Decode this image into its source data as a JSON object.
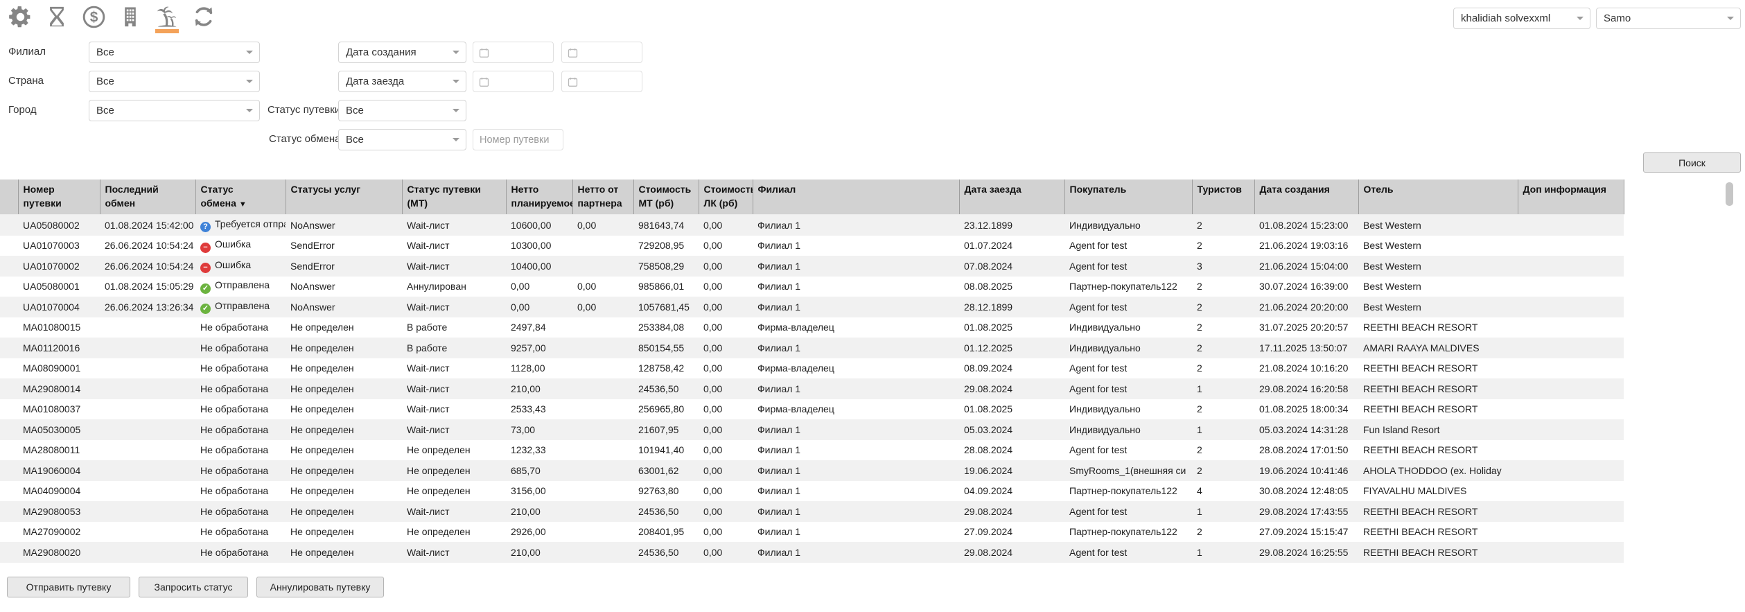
{
  "accent_color": "#F4A259",
  "status_colors": {
    "question": "#3E82D8",
    "error": "#DF3B3B",
    "sent": "#6CB33F"
  },
  "toolbar": {
    "icons": [
      {
        "name": "settings"
      },
      {
        "name": "hourglass"
      },
      {
        "name": "finance"
      },
      {
        "name": "hotels"
      },
      {
        "name": "tours",
        "active": true
      },
      {
        "name": "refresh"
      }
    ]
  },
  "session": {
    "account": "khalidiah solvexxml",
    "provider": "Samo"
  },
  "filters": {
    "branch": {
      "label": "Филиал",
      "value": "Все"
    },
    "country": {
      "label": "Страна",
      "value": "Все"
    },
    "city": {
      "label": "Город",
      "value": "Все"
    },
    "date_created": {
      "value": "Дата создания"
    },
    "date_arrival": {
      "value": "Дата заезда"
    },
    "voucher_status": {
      "label": "Статус путевки",
      "value": "Все"
    },
    "exchange_status": {
      "label": "Статус обмена",
      "value": "Все"
    },
    "voucher_number": {
      "placeholder": "Номер путевки"
    },
    "search": "Поиск"
  },
  "table": {
    "headers": {
      "selector": "",
      "voucher": "Номер путевки",
      "last_exchange": "Последний обмен",
      "exchange_status": "Статус обмена",
      "sort_indicator": "▼",
      "service_statuses": "Статусы услуг",
      "mt_status": "Статус путевки (МТ)",
      "netto_planned": "Нетто планируемое",
      "netto_partner": "Нетто от партнера",
      "cost_mt": "Стоимость МТ (рб)",
      "cost_lk": "Стоимость ЛК (рб)",
      "branch": "Филиал",
      "arrival": "Дата заезда",
      "buyer": "Покупатель",
      "tourists": "Туристов",
      "created": "Дата создания",
      "hotel": "Отель",
      "extra": "Доп информация"
    },
    "rows": [
      {
        "voucher": "UA05080002",
        "last_exchange": "01.08.2024 15:42:00",
        "status_icon": "question",
        "status": "Требуется отправка",
        "service_statuses": "NoAnswer",
        "mt_status": "Wait-лист",
        "netto_planned": "10600,00",
        "netto_partner": "0,00",
        "cost_mt": "981643,74",
        "cost_lk": "0,00",
        "branch": "Филиал 1",
        "arrival": "23.12.1899",
        "buyer": "Индивидуально",
        "tourists": "2",
        "created": "01.08.2024 15:23:00",
        "hotel": "Best Western",
        "extra": ""
      },
      {
        "voucher": "UA01070003",
        "last_exchange": "26.06.2024 10:54:24",
        "status_icon": "error",
        "status": "Ошибка",
        "service_statuses": "SendError",
        "mt_status": "Wait-лист",
        "netto_planned": "10300,00",
        "netto_partner": "",
        "cost_mt": "729208,95",
        "cost_lk": "0,00",
        "branch": "Филиал 1",
        "arrival": "01.07.2024",
        "buyer": "Agent for test",
        "tourists": "2",
        "created": "21.06.2024 19:03:16",
        "hotel": "Best Western",
        "extra": ""
      },
      {
        "voucher": "UA01070002",
        "last_exchange": "26.06.2024 10:54:24",
        "status_icon": "error",
        "status": "Ошибка",
        "service_statuses": "SendError",
        "mt_status": "Wait-лист",
        "netto_planned": "10400,00",
        "netto_partner": "",
        "cost_mt": "758508,29",
        "cost_lk": "0,00",
        "branch": "Филиал 1",
        "arrival": "07.08.2024",
        "buyer": "Agent for test",
        "tourists": "3",
        "created": "21.06.2024 15:04:00",
        "hotel": "Best Western",
        "extra": ""
      },
      {
        "voucher": "UA05080001",
        "last_exchange": "01.08.2024 15:05:29",
        "status_icon": "sent",
        "status": "Отправлена",
        "service_statuses": "NoAnswer",
        "mt_status": "Аннулирован",
        "netto_planned": "0,00",
        "netto_partner": "0,00",
        "cost_mt": "985866,01",
        "cost_lk": "0,00",
        "branch": "Филиал 1",
        "arrival": "08.08.2025",
        "buyer": "Партнер-покупатель122",
        "tourists": "2",
        "created": "30.07.2024 16:39:00",
        "hotel": "Best Western",
        "extra": ""
      },
      {
        "voucher": "UA01070004",
        "last_exchange": "26.06.2024 13:26:34",
        "status_icon": "sent",
        "status": "Отправлена",
        "service_statuses": "NoAnswer",
        "mt_status": "Wait-лист",
        "netto_planned": "0,00",
        "netto_partner": "0,00",
        "cost_mt": "1057681,45",
        "cost_lk": "0,00",
        "branch": "Филиал 1",
        "arrival": "28.12.1899",
        "buyer": "Agent for test",
        "tourists": "2",
        "created": "21.06.2024 20:20:00",
        "hotel": "Best Western",
        "extra": ""
      },
      {
        "voucher": "MA01080015",
        "last_exchange": "",
        "status_icon": null,
        "status": "Не обработана",
        "service_statuses": "Не определен",
        "mt_status": "В работе",
        "netto_planned": "2497,84",
        "netto_partner": "",
        "cost_mt": "253384,08",
        "cost_lk": "0,00",
        "branch": "Фирма-владелец",
        "arrival": "01.08.2025",
        "buyer": "Индивидуально",
        "tourists": "2",
        "created": "31.07.2025 20:20:57",
        "hotel": "REETHI BEACH RESORT",
        "extra": ""
      },
      {
        "voucher": "MA01120016",
        "last_exchange": "",
        "status_icon": null,
        "status": "Не обработана",
        "service_statuses": "Не определен",
        "mt_status": "В работе",
        "netto_planned": "9257,00",
        "netto_partner": "",
        "cost_mt": "850154,55",
        "cost_lk": "0,00",
        "branch": "Филиал 1",
        "arrival": "01.12.2025",
        "buyer": "Индивидуально",
        "tourists": "2",
        "created": "17.11.2025 13:50:07",
        "hotel": "AMARI RAAYA MALDIVES",
        "extra": ""
      },
      {
        "voucher": "MA08090001",
        "last_exchange": "",
        "status_icon": null,
        "status": "Не обработана",
        "service_statuses": "Не определен",
        "mt_status": "Wait-лист",
        "netto_planned": "1128,00",
        "netto_partner": "",
        "cost_mt": "128758,42",
        "cost_lk": "0,00",
        "branch": "Фирма-владелец",
        "arrival": "08.09.2024",
        "buyer": "Agent for test",
        "tourists": "2",
        "created": "21.08.2024 10:16:20",
        "hotel": "REETHI BEACH RESORT",
        "extra": ""
      },
      {
        "voucher": "MA29080014",
        "last_exchange": "",
        "status_icon": null,
        "status": "Не обработана",
        "service_statuses": "Не определен",
        "mt_status": "Wait-лист",
        "netto_planned": "210,00",
        "netto_partner": "",
        "cost_mt": "24536,50",
        "cost_lk": "0,00",
        "branch": "Филиал 1",
        "arrival": "29.08.2024",
        "buyer": "Agent for test",
        "tourists": "1",
        "created": "29.08.2024 16:20:58",
        "hotel": "REETHI BEACH RESORT",
        "extra": ""
      },
      {
        "voucher": "MA01080037",
        "last_exchange": "",
        "status_icon": null,
        "status": "Не обработана",
        "service_statuses": "Не определен",
        "mt_status": "Wait-лист",
        "netto_planned": "2533,43",
        "netto_partner": "",
        "cost_mt": "256965,80",
        "cost_lk": "0,00",
        "branch": "Фирма-владелец",
        "arrival": "01.08.2025",
        "buyer": "Индивидуально",
        "tourists": "2",
        "created": "01.08.2025 18:00:34",
        "hotel": "REETHI BEACH RESORT",
        "extra": ""
      },
      {
        "voucher": "MA05030005",
        "last_exchange": "",
        "status_icon": null,
        "status": "Не обработана",
        "service_statuses": "Не определен",
        "mt_status": "Wait-лист",
        "netto_planned": "73,00",
        "netto_partner": "",
        "cost_mt": "21607,95",
        "cost_lk": "0,00",
        "branch": "Филиал 1",
        "arrival": "05.03.2024",
        "buyer": "Индивидуально",
        "tourists": "1",
        "created": "05.03.2024 14:31:28",
        "hotel": "Fun Island Resort",
        "extra": ""
      },
      {
        "voucher": "MA28080011",
        "last_exchange": "",
        "status_icon": null,
        "status": "Не обработана",
        "service_statuses": "Не определен",
        "mt_status": "Не определен",
        "netto_planned": "1232,33",
        "netto_partner": "",
        "cost_mt": "101941,40",
        "cost_lk": "0,00",
        "branch": "Филиал 1",
        "arrival": "28.08.2024",
        "buyer": "Agent for test",
        "tourists": "2",
        "created": "28.08.2024 17:01:50",
        "hotel": "REETHI BEACH RESORT",
        "extra": ""
      },
      {
        "voucher": "MA19060004",
        "last_exchange": "",
        "status_icon": null,
        "status": "Не обработана",
        "service_statuses": "Не определен",
        "mt_status": "Не определен",
        "netto_planned": "685,70",
        "netto_partner": "",
        "cost_mt": "63001,62",
        "cost_lk": "0,00",
        "branch": "Филиал 1",
        "arrival": "19.06.2024",
        "buyer": "SmyRooms_1(внешняя си",
        "tourists": "2",
        "created": "19.06.2024 10:41:46",
        "hotel": "AHOLA THODDOO (ex. Holiday",
        "extra": ""
      },
      {
        "voucher": "MA04090004",
        "last_exchange": "",
        "status_icon": null,
        "status": "Не обработана",
        "service_statuses": "Не определен",
        "mt_status": "Не определен",
        "netto_planned": "3156,00",
        "netto_partner": "",
        "cost_mt": "92763,80",
        "cost_lk": "0,00",
        "branch": "Филиал 1",
        "arrival": "04.09.2024",
        "buyer": "Партнер-покупатель122",
        "tourists": "4",
        "created": "30.08.2024 12:48:05",
        "hotel": "FIYAVALHU MALDIVES",
        "extra": ""
      },
      {
        "voucher": "MA29080053",
        "last_exchange": "",
        "status_icon": null,
        "status": "Не обработана",
        "service_statuses": "Не определен",
        "mt_status": "Wait-лист",
        "netto_planned": "210,00",
        "netto_partner": "",
        "cost_mt": "24536,50",
        "cost_lk": "0,00",
        "branch": "Филиал 1",
        "arrival": "29.08.2024",
        "buyer": "Agent for test",
        "tourists": "1",
        "created": "29.08.2024 17:43:55",
        "hotel": "REETHI BEACH RESORT",
        "extra": ""
      },
      {
        "voucher": "MA27090002",
        "last_exchange": "",
        "status_icon": null,
        "status": "Не обработана",
        "service_statuses": "Не определен",
        "mt_status": "Не определен",
        "netto_planned": "2926,00",
        "netto_partner": "",
        "cost_mt": "208401,95",
        "cost_lk": "0,00",
        "branch": "Филиал 1",
        "arrival": "27.09.2024",
        "buyer": "Партнер-покупатель122",
        "tourists": "2",
        "created": "27.09.2024 15:15:47",
        "hotel": "REETHI BEACH RESORT",
        "extra": ""
      },
      {
        "voucher": "MA29080020",
        "last_exchange": "",
        "status_icon": null,
        "status": "Не обработана",
        "service_statuses": "Не определен",
        "mt_status": "Wait-лист",
        "netto_planned": "210,00",
        "netto_partner": "",
        "cost_mt": "24536,50",
        "cost_lk": "0,00",
        "branch": "Филиал 1",
        "arrival": "29.08.2024",
        "buyer": "Agent for test",
        "tourists": "1",
        "created": "29.08.2024 16:25:55",
        "hotel": "REETHI BEACH RESORT",
        "extra": ""
      }
    ]
  },
  "actions": [
    {
      "label": "Отправить путевку"
    },
    {
      "label": "Запросить статус"
    },
    {
      "label": "Аннулировать путевку"
    }
  ]
}
